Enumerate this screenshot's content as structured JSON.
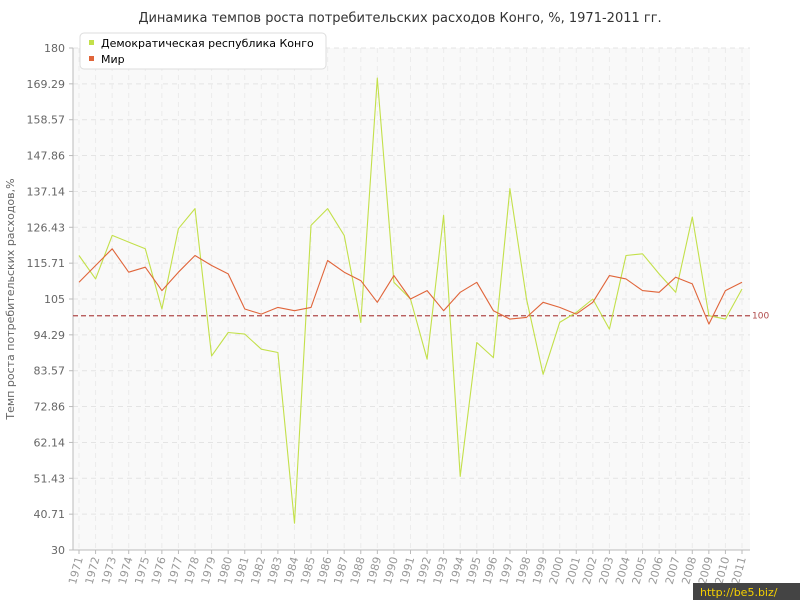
{
  "chart_data": {
    "type": "line",
    "title": "Динамика темпов роста потребительских расходов Конго, %, 1971-2011 гг.",
    "ylabel": "Темп роста потребительских расходов,%",
    "xlabel": "",
    "ylim": [
      30,
      180
    ],
    "yticks": [
      "30",
      "40.71",
      "51.43",
      "62.14",
      "72.86",
      "83.57",
      "94.29",
      "105",
      "115.71",
      "126.43",
      "137.14",
      "147.86",
      "158.57",
      "169.29",
      "180"
    ],
    "ytick_values": [
      30,
      40.71,
      51.43,
      62.14,
      72.86,
      83.57,
      94.29,
      105,
      115.71,
      126.43,
      137.14,
      147.86,
      158.57,
      169.29,
      180
    ],
    "categories": [
      "1971",
      "1972",
      "1973",
      "1974",
      "1975",
      "1976",
      "1977",
      "1978",
      "1979",
      "1980",
      "1981",
      "1982",
      "1983",
      "1984",
      "1985",
      "1986",
      "1987",
      "1988",
      "1989",
      "1990",
      "1991",
      "1992",
      "1993",
      "1994",
      "1995",
      "1996",
      "1997",
      "1998",
      "1999",
      "2000",
      "2001",
      "2002",
      "2003",
      "2004",
      "2005",
      "2006",
      "2007",
      "2008",
      "2009",
      "2010",
      "2011"
    ],
    "series": [
      {
        "name": "Демократическая республика Конго",
        "color": "#c3e04a",
        "values": [
          118,
          111,
          124,
          122,
          120,
          102,
          126,
          132,
          88,
          95,
          94.5,
          90,
          89,
          38,
          127,
          132,
          124,
          98,
          171,
          110,
          105,
          87,
          130,
          52,
          92,
          87.5,
          138,
          105,
          82.5,
          98,
          101,
          105,
          96,
          118,
          118.5,
          112.5,
          107,
          129.5,
          100,
          99,
          108
        ]
      },
      {
        "name": "Мир",
        "color": "#e0653a",
        "values": [
          110,
          115,
          120,
          113,
          114.5,
          107.5,
          113,
          118,
          115,
          112.5,
          102,
          100.5,
          102.5,
          101.5,
          102.5,
          116.5,
          113,
          110.5,
          104,
          112,
          105,
          107.5,
          101.5,
          107,
          110,
          101.5,
          99,
          99.5,
          104,
          102.5,
          100.5,
          104,
          112,
          111,
          107.5,
          107,
          111.5,
          109.5,
          97.5,
          107.5,
          110
        ]
      }
    ],
    "reference_line": {
      "value": 100,
      "label": "100",
      "color": "#b04a4a"
    },
    "grid": true,
    "legend": "top-left"
  },
  "watermark": "http://be5.biz/"
}
